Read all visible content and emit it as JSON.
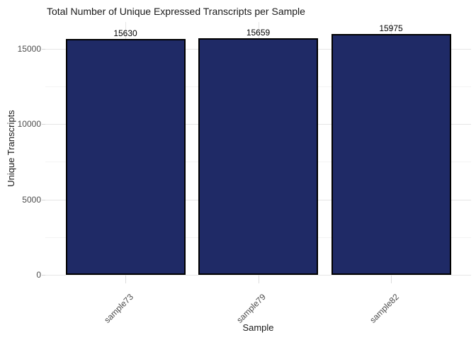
{
  "figure": {
    "title": "Total Number of Unique Expressed Transcripts per Sample",
    "x_axis_label": "Sample",
    "y_axis_label": "Unique Transcripts"
  },
  "chart_data": {
    "type": "bar",
    "title": "Total Number of Unique Expressed Transcripts per Sample",
    "categories": [
      "sample73",
      "sample79",
      "sample82"
    ],
    "values": [
      15630,
      15659,
      15975
    ],
    "bar_labels": [
      "15630",
      "15659",
      "15975"
    ],
    "xlabel": "Sample",
    "ylabel": "Unique Transcripts",
    "ylim": [
      0,
      16800
    ],
    "yticks": [
      0,
      5000,
      10000,
      15000
    ],
    "ytick_labels": [
      "0",
      "5000",
      "10000",
      "15000"
    ],
    "yticks_minor": [
      2500,
      7500,
      12500
    ],
    "grid": true,
    "legend": "none",
    "colors": {
      "bar_fill": "#1f2a66",
      "bar_edge": "#000000",
      "grid_major": "#e6e6e6",
      "grid_minor": "#f4f4f4",
      "tick_label": "#4d4d4d",
      "text": "#1a1a1a",
      "background": "#ffffff"
    }
  }
}
